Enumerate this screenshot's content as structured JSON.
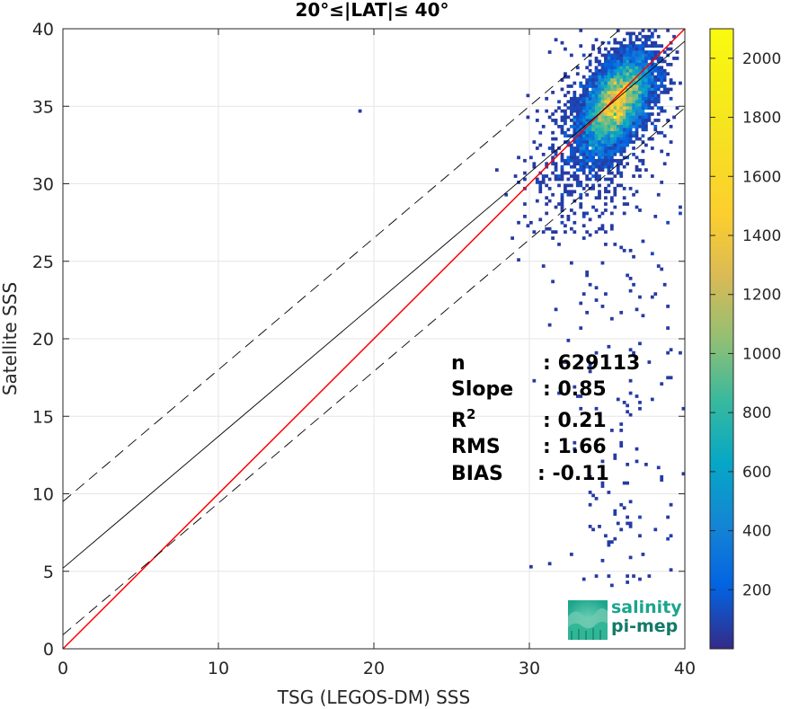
{
  "chart_data": {
    "type": "heatmap",
    "title": "20°≤|LAT|≤ 40°",
    "xlabel": "TSG (LEGOS-DM) SSS",
    "ylabel": "Satellite SSS",
    "xlim": [
      0,
      40
    ],
    "ylim": [
      0,
      40
    ],
    "xticks": [
      0,
      10,
      20,
      30,
      40
    ],
    "yticks": [
      0,
      5,
      10,
      15,
      20,
      25,
      30,
      35,
      40
    ],
    "x_tick_labels": [
      "0",
      "10",
      "20",
      "30",
      "40"
    ],
    "y_tick_labels": [
      "0",
      "5",
      "10",
      "15",
      "20",
      "25",
      "30",
      "35",
      "40"
    ],
    "grid": true,
    "colormap": "parula",
    "colorbar": {
      "range": [
        0,
        2100
      ],
      "ticks": [
        200,
        400,
        600,
        800,
        1000,
        1200,
        1400,
        1600,
        1800,
        2000
      ],
      "tick_labels": [
        "200",
        "400",
        "600",
        "800",
        "1000",
        "1200",
        "1400",
        "1600",
        "1800",
        "2000"
      ]
    },
    "density_core": {
      "x_center": 35.6,
      "y_center": 35.2,
      "peak_count": 2050
    },
    "lines": [
      {
        "role": "identity",
        "slope": 1,
        "intercept": 0,
        "color": "#ff0000",
        "style": "solid"
      },
      {
        "role": "regression",
        "slope": 0.85,
        "intercept": 5.2,
        "color": "#000000",
        "style": "solid"
      },
      {
        "role": "upper-bound",
        "slope": 0.85,
        "intercept": 9.5,
        "color": "#000000",
        "style": "dashed"
      },
      {
        "role": "lower-bound",
        "slope": 0.85,
        "intercept": 0.9,
        "color": "#000000",
        "style": "dashed"
      }
    ],
    "stats": [
      {
        "label": "n",
        "value": ": 629113"
      },
      {
        "label": "Slope",
        "value": ": 0.85"
      },
      {
        "label": "R",
        "sup": "2",
        "value": ": 0.21"
      },
      {
        "label": "RMS",
        "value": ": 1.66"
      },
      {
        "label": "BIAS",
        "value": ": -0.11"
      }
    ]
  },
  "logo": {
    "line1": "salinity",
    "line2": "pi-mep",
    "color": "#1aa58c"
  }
}
